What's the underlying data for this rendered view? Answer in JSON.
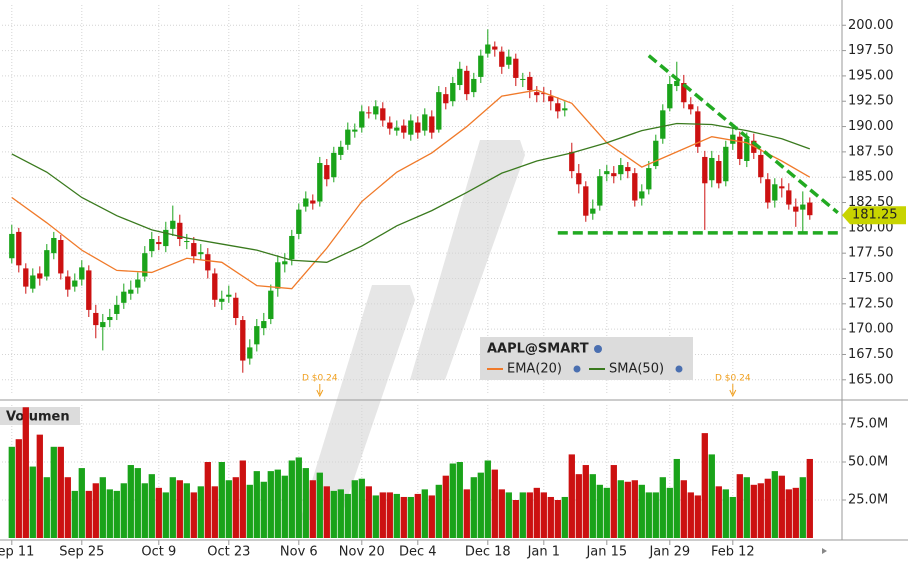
{
  "chart_data": {
    "type": "candlestick",
    "categories": [
      "Sep 11",
      null,
      null,
      null,
      null,
      null,
      null,
      null,
      null,
      null,
      "Sep 25",
      null,
      null,
      null,
      null,
      null,
      null,
      null,
      null,
      null,
      null,
      "Oct 9",
      null,
      null,
      null,
      null,
      null,
      null,
      null,
      null,
      null,
      "Oct 23",
      null,
      null,
      null,
      null,
      null,
      null,
      null,
      null,
      null,
      "Nov 6",
      null,
      null,
      null,
      null,
      null,
      null,
      null,
      null,
      "Nov 20",
      null,
      null,
      null,
      null,
      null,
      null,
      null,
      "Dec 4",
      null,
      null,
      null,
      null,
      null,
      null,
      null,
      null,
      null,
      "Dec 18",
      null,
      null,
      null,
      null,
      null,
      null,
      null,
      "Jan 1",
      null,
      null,
      null,
      null,
      null,
      null,
      null,
      null,
      "Jan 15",
      null,
      null,
      null,
      null,
      null,
      null,
      null,
      null,
      "Jan 29",
      null,
      null,
      null,
      null,
      null,
      null,
      null,
      null,
      "Feb 12",
      null,
      null,
      null,
      null,
      null,
      null,
      null,
      null,
      null,
      null,
      null
    ],
    "open": [
      177.0,
      179.6,
      176.0,
      174.0,
      175.5,
      175.2,
      177.5,
      178.8,
      175.2,
      174.2,
      174.9,
      175.8,
      171.6,
      170.2,
      170.9,
      171.5,
      172.6,
      173.5,
      174.1,
      175.2,
      177.7,
      178.6,
      178.2,
      179.9,
      180.5,
      178.6,
      178.5,
      177.4,
      177.4,
      175.5,
      172.7,
      173.2,
      173.1,
      170.9,
      167.1,
      168.5,
      170.1,
      171.0,
      174.0,
      176.4,
      176.9,
      179.4,
      182.1,
      182.7,
      182.6,
      186.2,
      185.0,
      187.2,
      188.2,
      189.5,
      189.9,
      191.4,
      191.2,
      191.8,
      190.4,
      189.6,
      190.1,
      189.2,
      190.4,
      189.6,
      191.0,
      189.7,
      193.2,
      192.5,
      194.1,
      195.5,
      193.4,
      194.9,
      197.2,
      197.9,
      197.4,
      196.1,
      196.7,
      194.6,
      194.9,
      193.4,
      193.3,
      193.0,
      192.3,
      191.6,
      187.5,
      185.4,
      184.1,
      181.4,
      182.2,
      185.3,
      185.4,
      185.3,
      186.0,
      185.4,
      182.9,
      183.8,
      186.1,
      188.8,
      191.8,
      194.0,
      194.3,
      192.2,
      191.5,
      187.0,
      184.7,
      186.6,
      184.6,
      188.3,
      189.0,
      186.6,
      188.6,
      187.2,
      184.8,
      182.7,
      184.1,
      183.7,
      182.1,
      181.8,
      182.5
    ],
    "high": [
      180.3,
      180.0,
      176.5,
      176.0,
      176.2,
      178.4,
      179.6,
      179.3,
      175.8,
      175.5,
      176.8,
      176.3,
      172.4,
      171.5,
      172.0,
      173.3,
      174.5,
      174.8,
      175.6,
      178.2,
      179.6,
      179.2,
      180.6,
      182.2,
      181.3,
      179.4,
      179.1,
      178.4,
      178.0,
      176.0,
      173.8,
      174.3,
      173.6,
      171.3,
      169.0,
      171.0,
      171.6,
      174.4,
      177.3,
      177.5,
      179.8,
      182.4,
      183.6,
      183.3,
      187.0,
      186.8,
      188.0,
      188.6,
      190.4,
      190.3,
      192.1,
      192.0,
      192.6,
      192.4,
      191.0,
      190.6,
      190.7,
      191.2,
      191.0,
      191.8,
      191.6,
      194.0,
      193.9,
      194.9,
      196.4,
      196.0,
      195.3,
      197.6,
      199.6,
      198.4,
      197.9,
      197.6,
      197.2,
      195.3,
      195.4,
      194.0,
      193.9,
      193.6,
      192.9,
      192.5,
      188.4,
      186.3,
      184.6,
      182.8,
      185.8,
      186.2,
      186.1,
      186.9,
      186.5,
      185.9,
      184.3,
      186.6,
      189.2,
      192.2,
      195.0,
      196.4,
      195.1,
      192.9,
      192.0,
      187.6,
      187.6,
      187.2,
      188.6,
      189.9,
      189.5,
      189.4,
      189.3,
      187.8,
      185.4,
      184.9,
      184.9,
      184.4,
      182.9,
      183.6,
      183.0
    ],
    "low": [
      176.5,
      175.6,
      173.5,
      173.6,
      174.3,
      174.8,
      176.9,
      174.9,
      173.2,
      173.7,
      174.3,
      171.2,
      169.1,
      167.9,
      170.2,
      170.9,
      172.0,
      172.9,
      173.5,
      174.7,
      177.1,
      177.8,
      177.6,
      179.2,
      178.2,
      177.9,
      176.5,
      176.8,
      175.0,
      172.2,
      171.9,
      172.6,
      170.4,
      165.7,
      166.5,
      167.8,
      169.4,
      170.5,
      173.2,
      175.6,
      176.3,
      178.9,
      181.6,
      181.8,
      182.1,
      184.1,
      184.5,
      186.7,
      187.7,
      188.9,
      189.4,
      190.8,
      190.7,
      190.0,
      189.2,
      189.1,
      188.8,
      188.6,
      188.8,
      189.1,
      188.8,
      189.4,
      191.7,
      192.0,
      193.6,
      192.6,
      192.9,
      194.3,
      196.8,
      196.9,
      195.2,
      195.7,
      194.0,
      193.9,
      192.8,
      192.4,
      192.4,
      191.6,
      190.8,
      191.0,
      184.9,
      183.4,
      180.6,
      180.8,
      181.7,
      184.6,
      184.4,
      184.7,
      184.9,
      182.1,
      182.2,
      183.3,
      185.8,
      188.3,
      191.5,
      193.5,
      191.8,
      191.2,
      187.4,
      179.8,
      184.0,
      183.9,
      184.1,
      187.7,
      186.2,
      186.0,
      186.8,
      184.4,
      181.9,
      182.0,
      183.0,
      181.8,
      180.1,
      179.6,
      180.8
    ],
    "close": [
      179.4,
      176.3,
      174.2,
      175.3,
      175.0,
      177.8,
      179.0,
      175.5,
      173.9,
      174.8,
      176.1,
      171.9,
      170.4,
      170.7,
      171.2,
      172.4,
      173.7,
      173.9,
      174.9,
      177.5,
      178.9,
      178.4,
      179.8,
      180.7,
      178.9,
      178.7,
      177.2,
      177.6,
      175.8,
      172.9,
      173.0,
      173.4,
      171.1,
      166.9,
      168.2,
      170.3,
      170.8,
      173.8,
      176.6,
      176.7,
      179.2,
      181.8,
      182.9,
      182.4,
      186.4,
      184.8,
      187.4,
      188.0,
      189.7,
      189.7,
      191.5,
      191.3,
      192.0,
      190.6,
      189.8,
      189.9,
      189.4,
      190.6,
      189.4,
      191.2,
      189.4,
      193.4,
      192.3,
      194.3,
      195.7,
      193.2,
      194.7,
      197.0,
      198.1,
      197.6,
      195.9,
      196.9,
      194.8,
      194.7,
      193.6,
      193.1,
      193.2,
      192.5,
      191.5,
      191.8,
      185.6,
      184.3,
      181.2,
      181.9,
      185.1,
      185.6,
      185.1,
      186.2,
      185.6,
      182.7,
      183.6,
      185.9,
      188.6,
      191.6,
      194.2,
      194.5,
      192.4,
      191.7,
      188.0,
      184.4,
      186.9,
      184.4,
      188.0,
      189.2,
      186.8,
      188.8,
      187.4,
      185.0,
      182.5,
      184.3,
      183.9,
      182.3,
      181.6,
      182.3,
      181.25
    ],
    "volume": [
      60,
      65,
      86,
      47,
      68,
      40,
      60,
      60,
      40,
      31,
      46,
      31,
      36,
      40,
      32,
      31,
      36,
      48,
      46,
      36,
      42,
      33,
      30,
      40,
      38,
      36,
      30,
      34,
      50,
      34,
      50,
      38,
      40,
      51,
      35,
      44,
      37,
      44,
      45,
      41,
      51,
      53,
      46,
      38,
      43,
      34,
      31,
      32,
      29,
      38,
      39,
      34,
      28,
      30,
      30,
      29,
      27,
      27,
      29,
      32,
      28,
      35,
      41,
      49,
      50,
      32,
      40,
      43,
      51,
      45,
      32,
      30,
      25,
      30,
      30,
      33,
      30,
      27,
      25,
      27,
      55,
      42,
      48,
      42,
      35,
      33,
      48,
      38,
      37,
      38,
      35,
      30,
      30,
      40,
      33,
      52,
      38,
      30,
      28,
      69,
      55,
      34,
      32,
      27,
      42,
      40,
      35,
      36,
      39,
      44,
      41,
      32,
      33,
      40,
      52
    ],
    "up_color": "#1aa31a",
    "down_color": "#cc1111",
    "xlim": [
      -1.4,
      118.6
    ],
    "ylim": [
      163.5,
      202
    ],
    "yticks": [
      {
        "value": 165,
        "label": "165.00"
      },
      {
        "value": 167.5,
        "label": "167.50"
      },
      {
        "value": 170,
        "label": "170.00"
      },
      {
        "value": 172.5,
        "label": "172.50"
      },
      {
        "value": 175,
        "label": "175.00"
      },
      {
        "value": 177.5,
        "label": "177.50"
      },
      {
        "value": 180,
        "label": "180.00"
      },
      {
        "value": 182.5,
        "label": "182.50"
      },
      {
        "value": 185,
        "label": "185.00"
      },
      {
        "value": 187.5,
        "label": "187.50"
      },
      {
        "value": 190,
        "label": "190.00"
      },
      {
        "value": 192.5,
        "label": "192.50"
      },
      {
        "value": 195,
        "label": "195.00"
      },
      {
        "value": 197.5,
        "label": "197.50"
      },
      {
        "value": 200,
        "label": "200.00"
      }
    ],
    "volume_label": "Volumen",
    "volume_ylim": [
      0,
      87.5
    ],
    "volume_yticks": [
      {
        "value": 25,
        "label": "25.0M"
      },
      {
        "value": 50,
        "label": "50.0M"
      },
      {
        "value": 75,
        "label": "75.0M"
      }
    ],
    "grid": true,
    "legend_title": "AAPL@SMART",
    "lines": [
      {
        "name": "EMA(20)",
        "color": "#f07a2a",
        "x": [
          0,
          5,
          10,
          15,
          20,
          25,
          30,
          35,
          40,
          45,
          50,
          55,
          60,
          65,
          70,
          75,
          80,
          85,
          90,
          95,
          100,
          105,
          110,
          114
        ],
        "values": [
          183.0,
          180.5,
          177.8,
          175.8,
          175.6,
          177.0,
          176.6,
          174.3,
          174.0,
          178.0,
          182.6,
          185.5,
          187.4,
          190.0,
          193.0,
          193.6,
          192.3,
          188.4,
          186.0,
          187.5,
          189.0,
          188.4,
          186.6,
          185.0
        ]
      },
      {
        "name": "SMA(50)",
        "color": "#3a7a1e",
        "x": [
          0,
          5,
          10,
          15,
          20,
          25,
          30,
          35,
          40,
          45,
          50,
          55,
          60,
          65,
          70,
          75,
          80,
          85,
          90,
          95,
          100,
          105,
          110,
          114
        ],
        "values": [
          187.3,
          185.5,
          183.0,
          181.2,
          179.8,
          179.0,
          178.4,
          177.8,
          176.8,
          176.6,
          178.2,
          180.2,
          181.7,
          183.5,
          185.4,
          186.6,
          187.4,
          188.4,
          189.6,
          190.3,
          190.2,
          189.6,
          188.8,
          187.8
        ]
      }
    ],
    "trendlines": [
      {
        "color": "#22aa22",
        "x": [
          91,
          118
        ],
        "y": [
          197.0,
          181.5
        ]
      },
      {
        "color": "#22aa22",
        "x": [
          78,
          118
        ],
        "y": [
          179.5,
          179.5
        ]
      }
    ],
    "dividends": [
      {
        "x": 44,
        "label": "D $0.24"
      },
      {
        "x": 103,
        "label": "D $0.24"
      }
    ],
    "last_price": 181.25,
    "last_price_color": "#c8d400"
  }
}
